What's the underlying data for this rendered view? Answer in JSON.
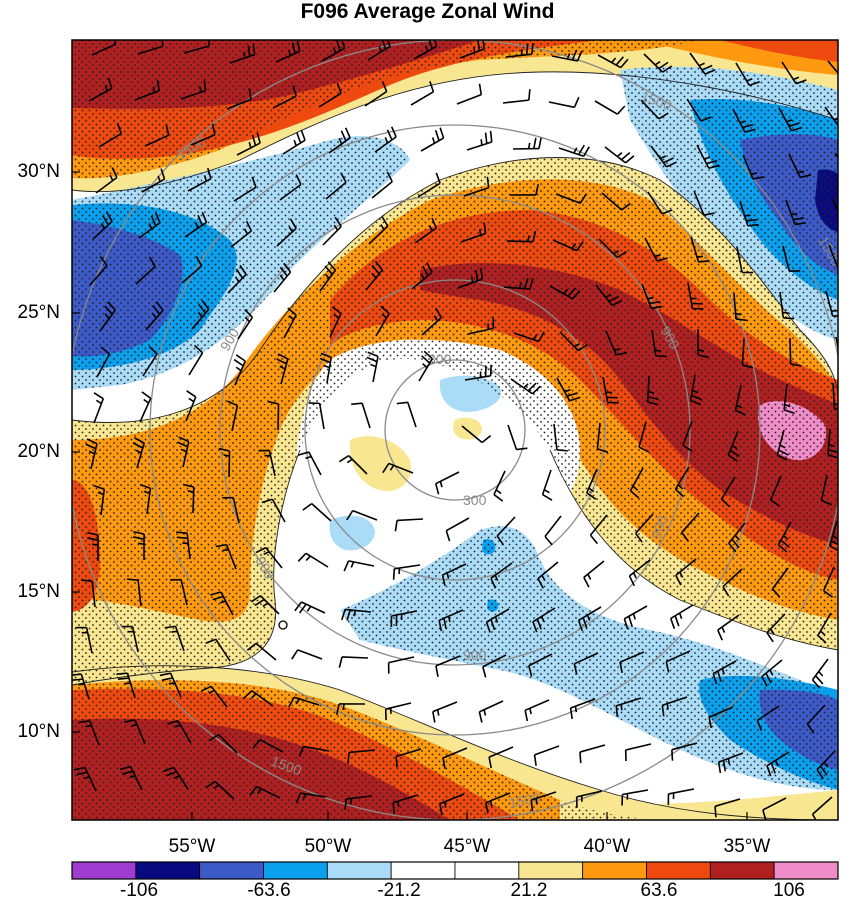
{
  "title": "F096 Average Zonal Wind",
  "map": {
    "lat_labels": [
      "30°N",
      "25°N",
      "20°N",
      "15°N",
      "10°N"
    ],
    "lon_labels": [
      "55°W",
      "50°W",
      "45°W",
      "40°W",
      "35°W"
    ],
    "range_ring_labels": [
      "300",
      "300",
      "900",
      "900",
      "900",
      "900",
      "900",
      "1500",
      "1500",
      "1500",
      "1500",
      "1500"
    ],
    "stippling": "dotted hatching over |wind| > ~21 region",
    "center_marker": "open-circle"
  },
  "colorbar": {
    "colors": [
      "#a03cd2",
      "#0a0a80",
      "#3c5ac8",
      "#0aa0ee",
      "#aadcf8",
      "#ffffff",
      "#ffffff",
      "#f8e690",
      "#ff9a10",
      "#ee4a10",
      "#b02020",
      "#f08cc8"
    ],
    "labels": [
      "-106",
      "-63.6",
      "-21.2",
      "21.2",
      "63.6",
      "106"
    ]
  }
}
